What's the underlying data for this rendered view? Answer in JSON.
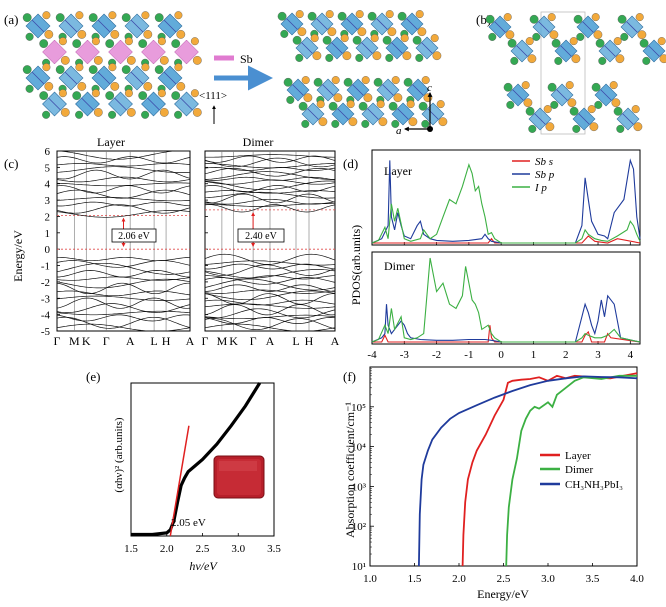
{
  "panel_a": {
    "label": "(a)",
    "legend_label": "Sb",
    "direction_label": "<111>",
    "axis_c": "c",
    "axis_a": "a"
  },
  "panel_b": {
    "label": "(b)"
  },
  "colors": {
    "octahedron": "#5aa7d8",
    "octahedron_edge": "#2f6f9f",
    "sb_atom": "#e07bd0",
    "i_atom_orange": "#f2a93b",
    "i_atom_green": "#34a853",
    "arrow": "#4a8fd1",
    "dash": "#e04a4a",
    "red": "#e02020",
    "blue": "#1f3b9c",
    "green": "#3cb043",
    "black": "#000000"
  },
  "chart_data": [
    {
      "id": "c",
      "label": "(c)",
      "type": "line",
      "ylabel": "Energy/eV",
      "ylim": [
        -5,
        6
      ],
      "yticks": [
        -5,
        -4,
        -3,
        -2,
        -1,
        0,
        1,
        2,
        3,
        4,
        5,
        6
      ],
      "subplots": [
        {
          "title": "Layer",
          "xticks": [
            "Γ",
            "M",
            "K",
            "Γ",
            "A",
            "L",
            "H",
            "A"
          ],
          "xtick_pos": [
            0,
            0.13,
            0.22,
            0.37,
            0.55,
            0.73,
            0.82,
            1.0
          ],
          "gap_label": "2.06 eV",
          "gap": [
            0,
            2.06
          ]
        },
        {
          "title": "Dimer",
          "xticks": [
            "Γ",
            "M",
            "K",
            "Γ",
            "A",
            "L",
            "H",
            "A"
          ],
          "xtick_pos": [
            0,
            0.13,
            0.22,
            0.37,
            0.5,
            0.7,
            0.8,
            1.0
          ],
          "gap_label": "2.40 eV",
          "gap": [
            0,
            2.4
          ]
        }
      ]
    },
    {
      "id": "d",
      "label": "(d)",
      "type": "line",
      "ylabel": "PDOS(arb.units)",
      "xlim": [
        -4,
        4.3
      ],
      "xticks": [
        -4,
        -3,
        -2,
        -1,
        0,
        1,
        2,
        3,
        4
      ],
      "legend": [
        "Sb s",
        "Sb p",
        "I p"
      ],
      "subplots": [
        {
          "title": "Layer",
          "series": [
            {
              "name": "Sb s",
              "color": "red",
              "x": [
                -4,
                -0.4,
                -0.3,
                -0.2,
                2.5,
                2.7,
                2.9,
                3.3,
                3.6,
                4.3
              ],
              "y": [
                0,
                0,
                0.05,
                0,
                0,
                0.08,
                0.02,
                0,
                0.05,
                0
              ]
            },
            {
              "name": "Sb p",
              "color": "blue",
              "x": [
                -4,
                -3.7,
                -3.5,
                -3.45,
                -3.4,
                -3.3,
                -3.2,
                -3.1,
                -3.0,
                -2.8,
                -2.6,
                -2.5,
                -2.4,
                -2.2,
                -2.0,
                -1.5,
                -1.0,
                -0.6,
                -0.5,
                -0.4,
                -0.3,
                0,
                2.3,
                2.5,
                2.6,
                2.7,
                2.8,
                3.0,
                3.2,
                3.3,
                3.5,
                3.8,
                4.0,
                4.1,
                4.2,
                4.3
              ],
              "y": [
                0,
                0.05,
                0.2,
                0.95,
                0.3,
                0.15,
                0.35,
                0.2,
                0.08,
                0.05,
                0.2,
                0.25,
                0.1,
                0.05,
                0.03,
                0.02,
                0.03,
                0.05,
                0.1,
                0.05,
                0.02,
                0,
                0,
                0.2,
                0.75,
                0.5,
                0.25,
                0.1,
                0.08,
                0.05,
                0.35,
                0.5,
                0.95,
                0.85,
                0.3,
                0.05
              ]
            },
            {
              "name": "I p",
              "color": "green",
              "x": [
                -4,
                -3.8,
                -3.6,
                -3.5,
                -3.4,
                -3.3,
                -3.2,
                -3.0,
                -2.8,
                -2.5,
                -2.4,
                -2.3,
                -2.2,
                -2.0,
                -1.8,
                -1.6,
                -1.4,
                -1.2,
                -1.0,
                -0.9,
                -0.8,
                -0.7,
                -0.6,
                -0.5,
                -0.4,
                -0.3,
                -0.2,
                0,
                2.3,
                2.5,
                2.6,
                2.7,
                2.9,
                3.1,
                3.3,
                3.6,
                3.9,
                4.0,
                4.1,
                4.2,
                4.3
              ],
              "y": [
                0,
                0.03,
                0.18,
                0.05,
                0.45,
                0.25,
                0.4,
                0.05,
                0.02,
                0.05,
                0.15,
                0.1,
                0.05,
                0.1,
                0.3,
                0.5,
                0.45,
                0.65,
                0.9,
                0.8,
                0.6,
                0.65,
                0.45,
                0.3,
                0.1,
                0.12,
                0.05,
                0,
                0,
                0.05,
                0.15,
                0.1,
                0.05,
                0.03,
                0.02,
                0.08,
                0.15,
                0.25,
                0.2,
                0.1,
                0.02
              ]
            }
          ]
        },
        {
          "title": "Dimer",
          "series": [
            {
              "name": "Sb s",
              "color": "red",
              "x": [
                -4,
                -3.7,
                -3.6,
                -3.5,
                -0.4,
                -0.35,
                -0.3,
                -0.2,
                2.5,
                2.6,
                2.7,
                2.8,
                3.2,
                3.3,
                3.4,
                4.3
              ],
              "y": [
                0,
                0,
                0.08,
                0,
                0,
                0.2,
                0.05,
                0,
                0,
                0.08,
                0.12,
                0,
                0,
                0.1,
                0.05,
                0
              ]
            },
            {
              "name": "Sb p",
              "color": "blue",
              "x": [
                -4,
                -3.7,
                -3.6,
                -3.55,
                -3.5,
                -3.4,
                -3.3,
                -3.1,
                -3.0,
                -2.9,
                -2.8,
                -2.5,
                -2.0,
                -1.5,
                -1.0,
                -0.5,
                -0.3,
                0,
                2.3,
                2.5,
                2.6,
                2.7,
                2.8,
                2.9,
                3.0,
                3.1,
                3.2,
                3.3,
                3.5,
                3.7,
                4.3
              ],
              "y": [
                0,
                0.05,
                0.1,
                0.45,
                0.2,
                0.1,
                0.15,
                0.25,
                0.2,
                0.1,
                0.05,
                0.03,
                0.02,
                0.02,
                0.03,
                0.03,
                0.02,
                0,
                0,
                0.3,
                0.45,
                0.35,
                0.2,
                0.1,
                0.25,
                0.5,
                0.3,
                0.55,
                0.45,
                0.05,
                0
              ]
            },
            {
              "name": "I p",
              "color": "green",
              "x": [
                -4,
                -3.8,
                -3.6,
                -3.5,
                -3.4,
                -3.3,
                -3.1,
                -3.0,
                -2.8,
                -2.6,
                -2.4,
                -2.2,
                -2.0,
                -1.8,
                -1.6,
                -1.4,
                -1.2,
                -1.1,
                -1.0,
                -0.9,
                -0.8,
                -0.7,
                -0.6,
                -0.4,
                -0.3,
                -0.2,
                0,
                2.3,
                2.5,
                2.6,
                2.7,
                2.9,
                3.1,
                3.3,
                3.5,
                3.7,
                4.3
              ],
              "y": [
                0,
                0.03,
                0.2,
                0.1,
                0.4,
                0.15,
                0.3,
                0.05,
                0.03,
                0.05,
                0.1,
                1.0,
                0.6,
                0.7,
                0.45,
                0.4,
                0.55,
                0.9,
                0.7,
                0.5,
                0.45,
                0.35,
                0.15,
                0.2,
                0.1,
                0.05,
                0,
                0,
                0.05,
                0.1,
                0.08,
                0.05,
                0.05,
                0.08,
                0.15,
                0.05,
                0
              ]
            }
          ]
        }
      ]
    },
    {
      "id": "e",
      "label": "(e)",
      "type": "line",
      "xlabel": "hν/eV",
      "ylabel": "(αhν)² (arb.units)",
      "xlim": [
        1.5,
        3.5
      ],
      "xticks": [
        1.5,
        2.0,
        2.5,
        3.0,
        3.5
      ],
      "annotation": "2.05 eV",
      "series": [
        {
          "name": "data",
          "color": "black",
          "x": [
            1.5,
            1.8,
            2.0,
            2.05,
            2.1,
            2.15,
            2.2,
            2.25,
            2.3,
            2.4,
            2.5,
            2.7,
            2.9,
            3.1,
            3.3
          ],
          "y": [
            0.01,
            0.01,
            0.02,
            0.04,
            0.1,
            0.22,
            0.33,
            0.38,
            0.42,
            0.46,
            0.5,
            0.6,
            0.72,
            0.85,
            1.0
          ]
        },
        {
          "name": "fit",
          "color": "red",
          "x": [
            2.05,
            2.31
          ],
          "y": [
            0.0,
            0.72
          ]
        }
      ]
    },
    {
      "id": "f",
      "label": "(f)",
      "type": "line",
      "xlabel": "Energy/eV",
      "ylabel": "Absorption coefficient/cm⁻¹",
      "xlim": [
        1.0,
        4.0
      ],
      "ylog": true,
      "ylim": [
        10.0,
        1000000.0
      ],
      "xticks": [
        1.0,
        1.5,
        2.0,
        2.5,
        3.0,
        3.5,
        4.0
      ],
      "yticks": [
        "10¹",
        "10²",
        "10³",
        "10⁴",
        "10⁵"
      ],
      "series": [
        {
          "name": "Layer",
          "color": "red",
          "x": [
            2.04,
            2.05,
            2.07,
            2.1,
            2.15,
            2.2,
            2.3,
            2.4,
            2.5,
            2.55,
            2.6,
            2.7,
            2.8,
            2.9,
            3.0,
            3.1,
            3.2,
            3.3,
            3.5,
            3.7,
            4.0
          ],
          "y": [
            10,
            60,
            400,
            1500,
            4000,
            8000,
            20000,
            60000,
            150000,
            400000,
            450000,
            480000,
            500000,
            550000,
            450000,
            600000,
            520000,
            600000,
            550000,
            520000,
            700000
          ]
        },
        {
          "name": "Dimer",
          "color": "green",
          "x": [
            2.53,
            2.54,
            2.56,
            2.6,
            2.65,
            2.7,
            2.75,
            2.8,
            2.85,
            2.9,
            3.0,
            3.05,
            3.1,
            3.2,
            3.3,
            3.4,
            3.6,
            3.8,
            4.0
          ],
          "y": [
            10,
            60,
            300,
            1500,
            5000,
            25000,
            50000,
            80000,
            100000,
            90000,
            130000,
            100000,
            200000,
            300000,
            450000,
            550000,
            500000,
            600000,
            600000
          ]
        },
        {
          "name": "CH₃NH₃PbI₃",
          "color": "blue",
          "x": [
            1.55,
            1.56,
            1.58,
            1.6,
            1.65,
            1.7,
            1.8,
            1.9,
            2.0,
            2.2,
            2.4,
            2.6,
            2.8,
            3.0,
            3.2,
            3.4,
            3.6,
            3.8,
            4.0
          ],
          "y": [
            10,
            200,
            1500,
            3500,
            8000,
            15000,
            30000,
            50000,
            70000,
            110000,
            170000,
            250000,
            350000,
            450000,
            520000,
            580000,
            560000,
            550000,
            520000
          ]
        }
      ]
    }
  ]
}
